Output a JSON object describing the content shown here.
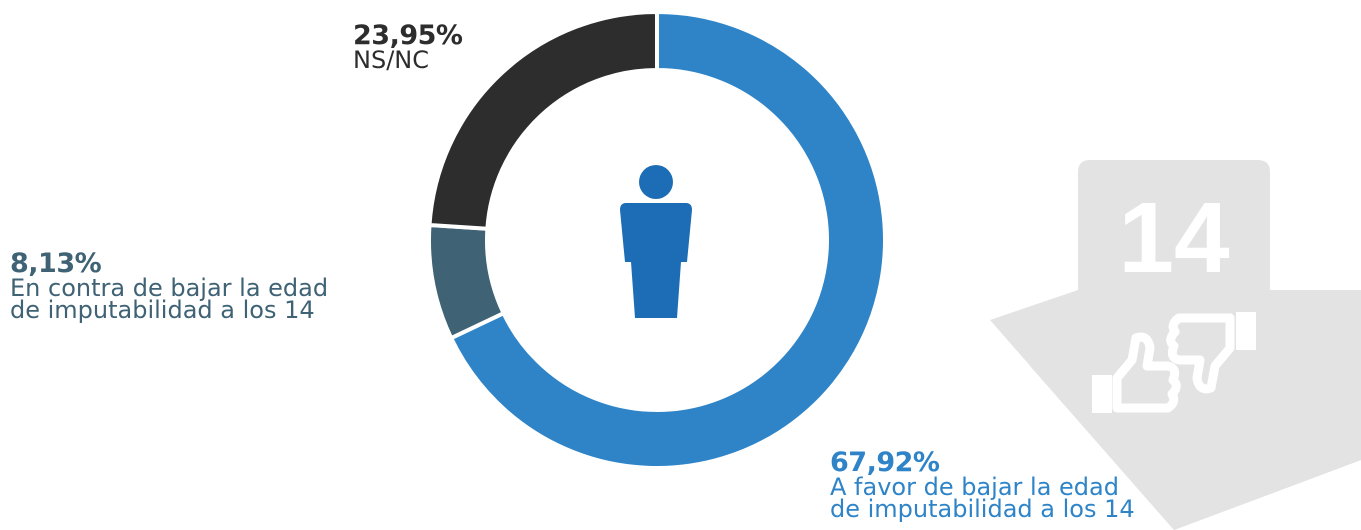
{
  "chart_data": {
    "type": "pie",
    "variant": "donut",
    "slices": [
      {
        "label": "A favor de bajar la edad de imputabilidad a los 14",
        "value": 67.92,
        "pct_text": "67,92%",
        "color": "#2f84c8"
      },
      {
        "label": "En contra de bajar la edad de imputabilidad a los 14",
        "value": 8.13,
        "pct_text": "8,13%",
        "color": "#3f6275"
      },
      {
        "label": "NS/NC",
        "value": 23.95,
        "pct_text": "23,95%",
        "color": "#2d2d2d"
      }
    ]
  },
  "labels": {
    "nsnc": {
      "pct": "23,95%",
      "line1": "NS/NC"
    },
    "contra": {
      "pct": "8,13%",
      "line1": "En contra de bajar la edad",
      "line2": "de imputabilidad a los 14"
    },
    "favor": {
      "pct": "67,92%",
      "line1": "A favor de bajar la edad",
      "line2": "de imputabilidad a los 14"
    }
  },
  "decoration": {
    "arrow_number": "14",
    "center_icon": "person-icon",
    "arrow_icons": [
      "thumbs-up-icon",
      "thumbs-down-icon"
    ],
    "arrow_color": "#e3e3e3",
    "center_icon_color": "#1c6db5"
  }
}
